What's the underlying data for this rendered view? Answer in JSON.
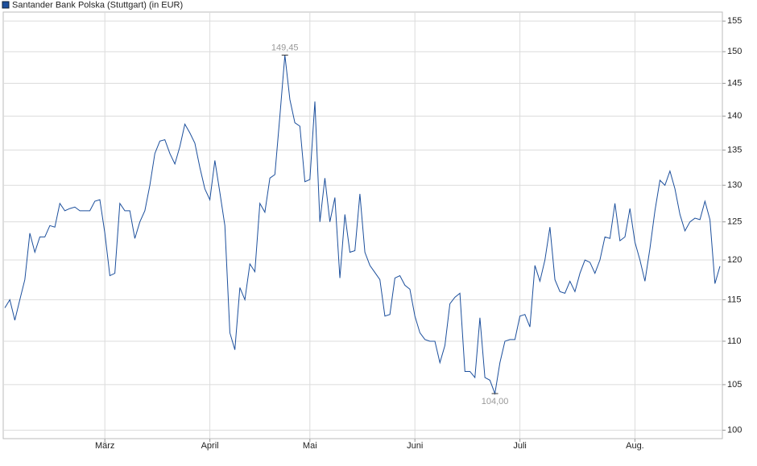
{
  "chart_data": {
    "type": "line",
    "log_scale": true,
    "grid": true,
    "legend": "top-left",
    "categories": [
      null,
      null,
      null,
      null,
      null,
      null,
      null,
      null,
      null,
      null,
      null,
      null,
      null,
      null,
      null,
      null,
      null,
      null,
      null,
      null,
      "März",
      null,
      null,
      null,
      null,
      null,
      null,
      null,
      null,
      null,
      null,
      null,
      null,
      null,
      null,
      null,
      null,
      null,
      null,
      null,
      null,
      "April",
      null,
      null,
      null,
      null,
      null,
      null,
      null,
      null,
      null,
      null,
      null,
      null,
      null,
      null,
      null,
      null,
      null,
      null,
      null,
      "Mai",
      null,
      null,
      null,
      null,
      null,
      null,
      null,
      null,
      null,
      null,
      null,
      null,
      null,
      null,
      null,
      null,
      null,
      null,
      null,
      null,
      "Juni",
      null,
      null,
      null,
      null,
      null,
      null,
      null,
      null,
      null,
      null,
      null,
      null,
      null,
      null,
      null,
      null,
      null,
      null,
      null,
      null,
      "Juli",
      null,
      null,
      null,
      null,
      null,
      null,
      null,
      null,
      null,
      null,
      null,
      null,
      null,
      null,
      null,
      null,
      null,
      null,
      null,
      null,
      null,
      null,
      "Aug.",
      null,
      null,
      null,
      null,
      null,
      null,
      null,
      null,
      null,
      null,
      null,
      null,
      null,
      null,
      null,
      null,
      null
    ],
    "series": [
      {
        "name": "Santander Bank Polska (Stuttgart) (in EUR)",
        "color": "#1c4f9c",
        "values": [
          114,
          115,
          112.5,
          115,
          117.5,
          123.5,
          121,
          123,
          123,
          124.5,
          124.3,
          127.5,
          126.5,
          126.8,
          127,
          126.5,
          126.5,
          126.5,
          127.8,
          128,
          123.5,
          118,
          118.3,
          127.5,
          126.5,
          126.5,
          122.8,
          125,
          126.5,
          130,
          134.5,
          136.3,
          136.5,
          134.5,
          133,
          135.5,
          138.8,
          137.5,
          136,
          132.5,
          129.5,
          128,
          133.5,
          129,
          124.5,
          111,
          109,
          116.5,
          115,
          119.5,
          118.5,
          127.5,
          126.3,
          131,
          131.5,
          140,
          149.45,
          142.5,
          139,
          138.5,
          130.5,
          130.8,
          142.2,
          125,
          131,
          125,
          128.3,
          117.7,
          126,
          121,
          121.2,
          128.8,
          121,
          119.3,
          118.4,
          117.5,
          113,
          113.2,
          117.7,
          118,
          116.8,
          116.3,
          113,
          111,
          110.2,
          110,
          110,
          107.5,
          109.5,
          114.5,
          115.3,
          115.8,
          106.5,
          106.5,
          105.8,
          112.8,
          105.8,
          105.5,
          104,
          107.5,
          110,
          110.2,
          110.2,
          113,
          113.2,
          111.7,
          119.3,
          117.3,
          120,
          124.3,
          117.5,
          116,
          115.8,
          117.3,
          116,
          118.3,
          120,
          119.7,
          118.3,
          120,
          123,
          122.8,
          127.5,
          122.5,
          123,
          126.8,
          122.3,
          120,
          117.3,
          121.5,
          126.5,
          130.7,
          130,
          132,
          129.5,
          126,
          123.8,
          125,
          125.5,
          125.3,
          127.8,
          125.3,
          117,
          119.2
        ],
        "value_labels": [
          null,
          null,
          null,
          null,
          null,
          null,
          null,
          null,
          null,
          null,
          null,
          null,
          null,
          null,
          null,
          null,
          null,
          null,
          null,
          null,
          null,
          null,
          null,
          null,
          null,
          null,
          null,
          null,
          null,
          null,
          null,
          null,
          null,
          null,
          null,
          null,
          null,
          null,
          null,
          null,
          null,
          null,
          null,
          null,
          null,
          null,
          null,
          null,
          null,
          null,
          null,
          null,
          null,
          null,
          null,
          null,
          "149,45",
          null,
          null,
          null,
          null,
          null,
          null,
          null,
          null,
          null,
          null,
          null,
          null,
          null,
          null,
          null,
          null,
          null,
          null,
          null,
          null,
          null,
          null,
          null,
          null,
          null,
          null,
          null,
          null,
          null,
          null,
          null,
          null,
          null,
          null,
          null,
          null,
          null,
          null,
          null,
          null,
          null,
          "104,00",
          null,
          null,
          null,
          null,
          null,
          null,
          null,
          null,
          null,
          null,
          null,
          null,
          null,
          null,
          null,
          null,
          null,
          null,
          null,
          null,
          null,
          null,
          null,
          null,
          null,
          null,
          null,
          null,
          null,
          null,
          null,
          null,
          null,
          null,
          null,
          null,
          null,
          null,
          null,
          null,
          null,
          null,
          null,
          null,
          null
        ]
      }
    ],
    "ylim": [
      99.1,
      156.5
    ],
    "yticks": [
      100,
      105,
      110,
      115,
      120,
      125,
      130,
      135,
      140,
      145,
      150,
      155
    ]
  }
}
